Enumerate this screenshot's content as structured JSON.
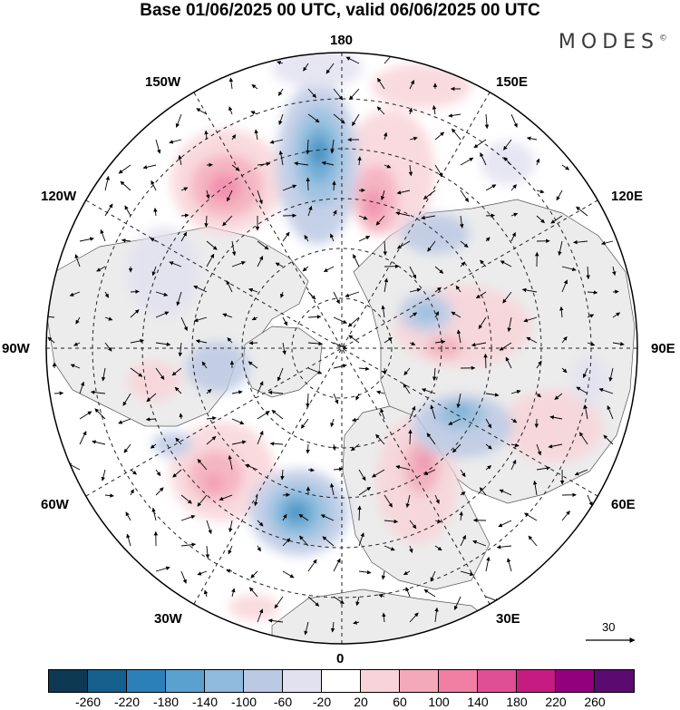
{
  "title": "Base 01/06/2025 00 UTC, valid 06/06/2025 00 UTC",
  "logo": "MODES",
  "logo_mark": "©",
  "longitude_labels": [
    "180",
    "150E",
    "120E",
    "90E",
    "60E",
    "30E",
    "0",
    "30W",
    "60W",
    "90W",
    "120W",
    "150W"
  ],
  "vector_scale": "30",
  "colorbar": {
    "colors": [
      "#0e3954",
      "#155f8d",
      "#2c80b9",
      "#5aa1cf",
      "#8fbadd",
      "#bcc9e4",
      "#e2e1f0",
      "#ffffff",
      "#f8d4d9",
      "#f4a9b8",
      "#f07fa3",
      "#e04f95",
      "#c61c82",
      "#93007e",
      "#5b0b6f"
    ],
    "tick_labels": [
      "-260",
      "-220",
      "-180",
      "-140",
      "-100",
      "-60",
      "-20",
      "20",
      "60",
      "100",
      "140",
      "180",
      "220",
      "260"
    ]
  },
  "colors": {
    "land": "#ececec",
    "ocean": "#ffffff",
    "coast": "#333333",
    "grid": "#222222"
  }
}
